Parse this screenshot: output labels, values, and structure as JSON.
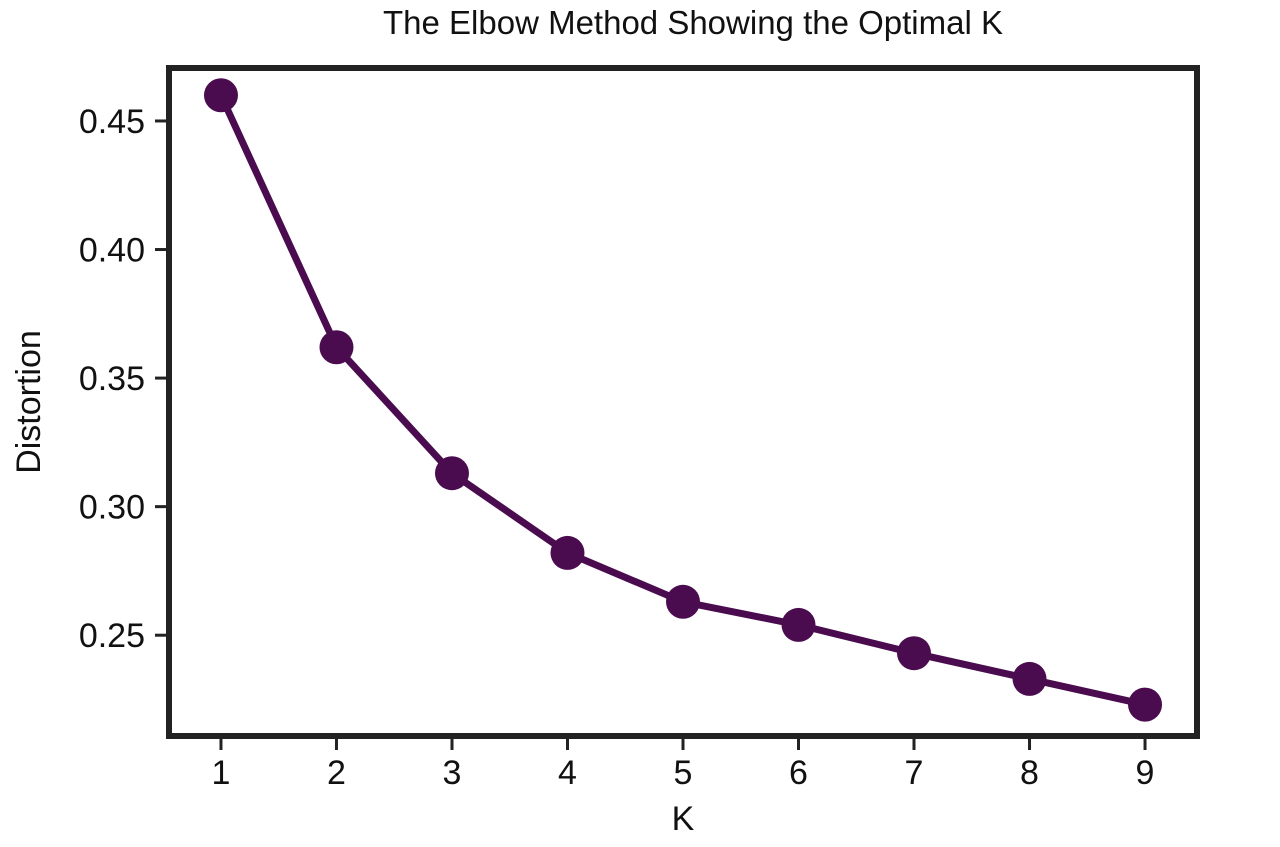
{
  "chart_data": {
    "type": "line",
    "title": "The Elbow Method Showing the Optimal K",
    "xlabel": "K",
    "ylabel": "Distortion",
    "x": [
      1,
      2,
      3,
      4,
      5,
      6,
      7,
      8,
      9
    ],
    "series": [
      {
        "values": [
          0.46,
          0.362,
          0.313,
          0.282,
          0.263,
          0.254,
          0.243,
          0.233,
          0.223
        ]
      }
    ],
    "xticks": [
      "1",
      "2",
      "3",
      "4",
      "5",
      "6",
      "7",
      "8",
      "9"
    ],
    "yticks": [
      "0.25",
      "0.30",
      "0.35",
      "0.40",
      "0.45"
    ],
    "ytick_values": [
      0.25,
      0.3,
      0.35,
      0.4,
      0.45
    ],
    "xlim": [
      0.55,
      9.45
    ],
    "ylim": [
      0.2108,
      0.4706
    ],
    "grid": false,
    "color": "#4a0c4f"
  }
}
